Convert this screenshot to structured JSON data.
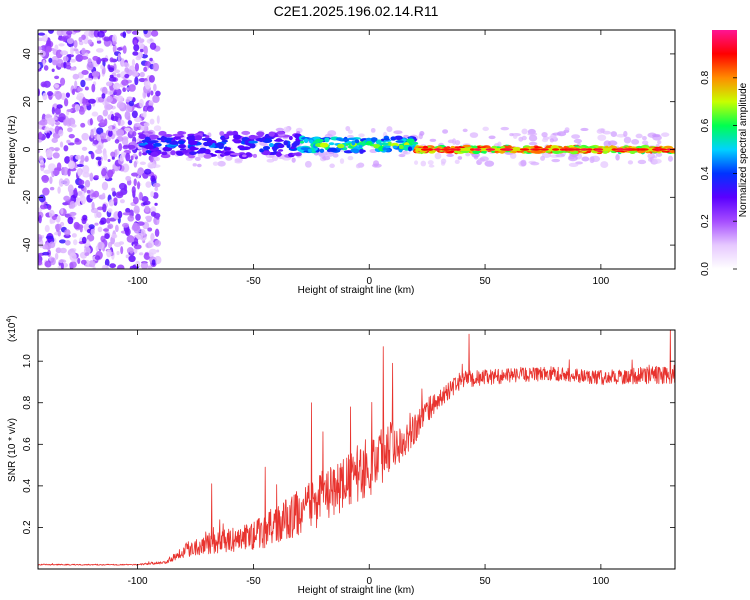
{
  "title": "C2E1.2025.196.02.14.R11",
  "chart_data": [
    {
      "type": "heatmap",
      "xlabel": "Height of straight line (km)",
      "ylabel": "Frequency (Hz)",
      "xlim": [
        -143,
        132
      ],
      "ylim": [
        -50,
        50
      ],
      "xticks": [
        -100,
        -50,
        0,
        50,
        100
      ],
      "yticks": [
        -40,
        -20,
        0,
        20,
        40
      ],
      "colorbar": {
        "label": "Normalized spectral amplitude",
        "range": [
          0.0,
          1.0
        ],
        "ticks": [
          "0.0",
          "0.2",
          "0.4",
          "0.6",
          "0.8"
        ],
        "tick_values": [
          0.0,
          0.2,
          0.4,
          0.6,
          0.8
        ],
        "colors": [
          "#ffffff",
          "#e6c8ff",
          "#a64dff",
          "#5a00ff",
          "#0033ff",
          "#00d2ff",
          "#00ff50",
          "#c8ff00",
          "#ff8c00",
          "#ff0000",
          "#ff1493"
        ]
      },
      "bands": [
        {
          "name": "noise",
          "x": [
            -143,
            -91
          ],
          "frequency_span": [
            -50,
            50
          ],
          "amplitude": 0.2
        },
        {
          "name": "onset",
          "x": [
            -98,
            -30
          ],
          "frequency_center": 2,
          "frequency_span": [
            -4,
            6
          ],
          "amplitude": 0.45
        },
        {
          "name": "trail",
          "x": [
            -30,
            20
          ],
          "frequency_center": 2,
          "frequency_span": [
            -2,
            4
          ],
          "amplitude": 0.65
        },
        {
          "name": "steady",
          "x": [
            20,
            132
          ],
          "frequency_center": 0,
          "frequency_span": [
            -1,
            1
          ],
          "amplitude": 0.9
        }
      ]
    },
    {
      "type": "line",
      "xlabel": "Height of straight line (km)",
      "ylabel": "SNR (10 * v/v)",
      "scale_label": "(x10",
      "scale_exponent": "4",
      "scale_suffix": ")",
      "xlim": [
        -143,
        132
      ],
      "ylim": [
        0,
        1.15
      ],
      "xticks": [
        -100,
        -50,
        0,
        50,
        100
      ],
      "yticks": [
        0.2,
        0.4,
        0.6,
        0.8,
        1.0
      ],
      "ytick_labels": [
        "0.2",
        "0.4",
        "0.6",
        "0.8",
        "1.0"
      ],
      "color": "#e8332e",
      "profile": {
        "x": [
          -143,
          -100,
          -88,
          -80,
          -70,
          -60,
          -50,
          -40,
          -30,
          -20,
          -10,
          0,
          10,
          15,
          20,
          25,
          30,
          40,
          60,
          80,
          100,
          120,
          132
        ],
        "baseline": [
          0.02,
          0.02,
          0.03,
          0.08,
          0.11,
          0.12,
          0.14,
          0.18,
          0.24,
          0.3,
          0.38,
          0.45,
          0.56,
          0.6,
          0.66,
          0.74,
          0.8,
          0.9,
          0.92,
          0.93,
          0.91,
          0.92,
          0.92
        ],
        "spread": [
          0.004,
          0.004,
          0.01,
          0.05,
          0.08,
          0.08,
          0.1,
          0.14,
          0.16,
          0.18,
          0.18,
          0.22,
          0.18,
          0.14,
          0.11,
          0.09,
          0.06,
          0.06,
          0.05,
          0.05,
          0.05,
          0.06,
          0.07
        ]
      },
      "peaks": [
        {
          "x": -68,
          "y": 0.41
        },
        {
          "x": -45,
          "y": 0.49
        },
        {
          "x": -25,
          "y": 0.8
        },
        {
          "x": -20,
          "y": 0.66
        },
        {
          "x": -8,
          "y": 0.78
        },
        {
          "x": 6,
          "y": 1.07
        },
        {
          "x": 10,
          "y": 0.99
        },
        {
          "x": 43,
          "y": 1.13
        },
        {
          "x": 130,
          "y": 1.16
        }
      ]
    }
  ]
}
